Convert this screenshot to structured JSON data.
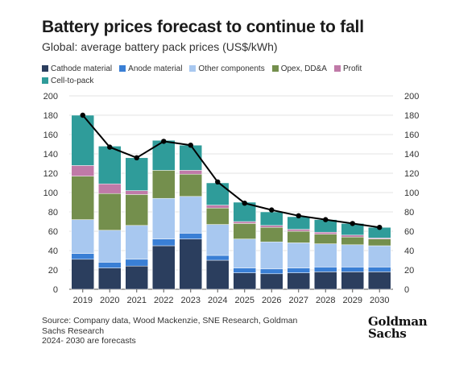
{
  "title": "Battery prices forecast to continue to fall",
  "subtitle": "Global: average battery pack prices (US$/kWh)",
  "source_lines": [
    "Source: Company data, Wood Mackenzie, SNE Research, Goldman Sachs Research",
    "2024- 2030 are forecasts"
  ],
  "logo_lines": [
    "Goldman",
    "Sachs"
  ],
  "colors": {
    "cathode": "#2b3e5e",
    "anode": "#3a7fd5",
    "other": "#a8c8f0",
    "opex": "#748f4d",
    "profit": "#c07aa8",
    "ctp": "#2f9c9a",
    "line": "#000000",
    "grid": "#e3e3e3"
  },
  "chart_data": {
    "type": "bar",
    "stacked": true,
    "categories": [
      "2019",
      "2020",
      "2021",
      "2022",
      "2023",
      "2024",
      "2025",
      "2026",
      "2027",
      "2028",
      "2029",
      "2030"
    ],
    "series": [
      {
        "name": "Cathode material",
        "key": "cathode",
        "values": [
          31,
          22,
          24,
          45,
          52,
          30,
          17,
          16,
          17,
          18,
          18,
          18
        ]
      },
      {
        "name": "Anode material",
        "key": "anode",
        "values": [
          6,
          6,
          7,
          7,
          6,
          5,
          5,
          5,
          5,
          5,
          5,
          5
        ]
      },
      {
        "name": "Other components",
        "key": "other",
        "values": [
          35,
          33,
          35,
          42,
          38,
          32,
          30,
          28,
          26,
          24,
          23,
          22
        ]
      },
      {
        "name": "Opex, DD&A",
        "key": "opex",
        "values": [
          45,
          38,
          32,
          29,
          23,
          17,
          16,
          15,
          12,
          10,
          8,
          7
        ]
      },
      {
        "name": "Profit",
        "key": "profit",
        "values": [
          11,
          10,
          4,
          0,
          4,
          3,
          2,
          2,
          2,
          2,
          2,
          1
        ]
      },
      {
        "name": "Cell-to-pack",
        "key": "ctp",
        "values": [
          52,
          39,
          34,
          31,
          26,
          23,
          20,
          14,
          13,
          13,
          12,
          11
        ]
      }
    ],
    "line": {
      "values": [
        180,
        147,
        136,
        153,
        149,
        111,
        89,
        82,
        76,
        72,
        68,
        64
      ]
    },
    "ylim": [
      0,
      200
    ],
    "yticks": [
      0,
      20,
      40,
      60,
      80,
      100,
      120,
      140,
      160,
      180,
      200
    ],
    "xlabel": "",
    "ylabel": "",
    "grid": true,
    "legend": "top"
  }
}
